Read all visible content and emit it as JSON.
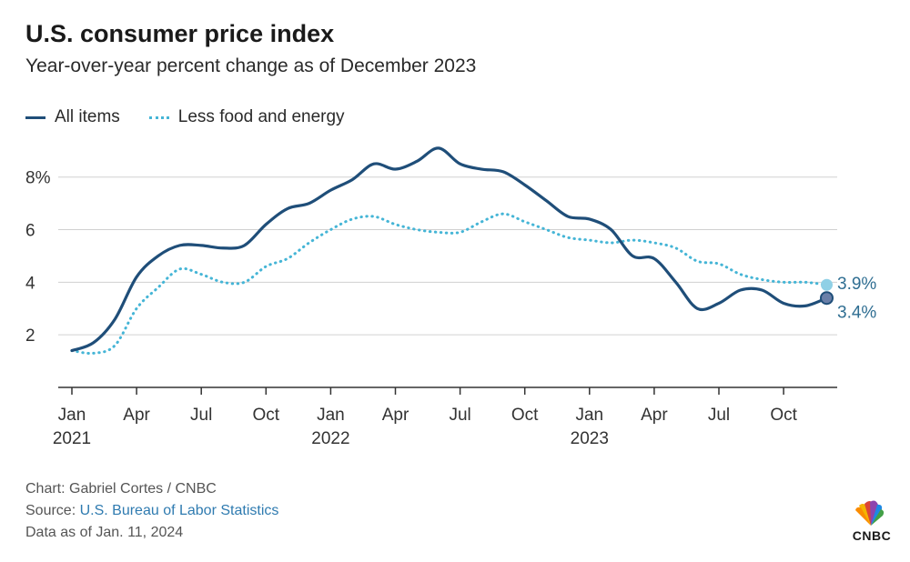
{
  "title": "U.S. consumer price index",
  "subtitle": "Year-over-year percent change as of December 2023",
  "legend": [
    {
      "label": "All items",
      "color": "#1f4e79",
      "style": "solid"
    },
    {
      "label": "Less food and energy",
      "color": "#45b5d6",
      "style": "dotted"
    }
  ],
  "footer": {
    "credit": "Chart: Gabriel Cortes / CNBC",
    "source_prefix": "Source: ",
    "source_link": "U.S. Bureau of Labor Statistics",
    "data_date": "Data as of Jan. 11, 2024"
  },
  "logo": {
    "text": "CNBC",
    "icon": "cnbc-peacock-icon"
  },
  "chart_data": {
    "type": "line",
    "x": [
      "2021-01",
      "2021-02",
      "2021-03",
      "2021-04",
      "2021-05",
      "2021-06",
      "2021-07",
      "2021-08",
      "2021-09",
      "2021-10",
      "2021-11",
      "2021-12",
      "2022-01",
      "2022-02",
      "2022-03",
      "2022-04",
      "2022-05",
      "2022-06",
      "2022-07",
      "2022-08",
      "2022-09",
      "2022-10",
      "2022-11",
      "2022-12",
      "2023-01",
      "2023-02",
      "2023-03",
      "2023-04",
      "2023-05",
      "2023-06",
      "2023-07",
      "2023-08",
      "2023-09",
      "2023-10",
      "2023-11",
      "2023-12"
    ],
    "x_ticks": [
      {
        "label": "Jan",
        "year": "2021",
        "index": 0
      },
      {
        "label": "Apr",
        "index": 3
      },
      {
        "label": "Jul",
        "index": 6
      },
      {
        "label": "Oct",
        "index": 9
      },
      {
        "label": "Jan",
        "year": "2022",
        "index": 12
      },
      {
        "label": "Apr",
        "index": 15
      },
      {
        "label": "Jul",
        "index": 18
      },
      {
        "label": "Oct",
        "index": 21
      },
      {
        "label": "Jan",
        "year": "2023",
        "index": 24
      },
      {
        "label": "Apr",
        "index": 27
      },
      {
        "label": "Jul",
        "index": 30
      },
      {
        "label": "Oct",
        "index": 33
      }
    ],
    "y_ticks": [
      {
        "value": 2,
        "label": "2"
      },
      {
        "value": 4,
        "label": "4"
      },
      {
        "value": 6,
        "label": "6"
      },
      {
        "value": 8,
        "label": "8%"
      }
    ],
    "ylim": [
      0,
      9.2
    ],
    "grid": true,
    "legend_position": "top-left",
    "series": [
      {
        "name": "All items",
        "color": "#1f4e79",
        "style": "solid",
        "values": [
          1.4,
          1.7,
          2.6,
          4.2,
          5.0,
          5.4,
          5.4,
          5.3,
          5.4,
          6.2,
          6.8,
          7.0,
          7.5,
          7.9,
          8.5,
          8.3,
          8.6,
          9.1,
          8.5,
          8.3,
          8.2,
          7.7,
          7.1,
          6.5,
          6.4,
          6.0,
          5.0,
          4.9,
          4.0,
          3.0,
          3.2,
          3.7,
          3.7,
          3.2,
          3.1,
          3.4
        ],
        "end_label": "3.4%"
      },
      {
        "name": "Less food and energy",
        "color": "#45b5d6",
        "style": "dotted",
        "values": [
          1.4,
          1.3,
          1.6,
          3.0,
          3.8,
          4.5,
          4.3,
          4.0,
          4.0,
          4.6,
          4.9,
          5.5,
          6.0,
          6.4,
          6.5,
          6.2,
          6.0,
          5.9,
          5.9,
          6.3,
          6.6,
          6.3,
          6.0,
          5.7,
          5.6,
          5.5,
          5.6,
          5.5,
          5.3,
          4.8,
          4.7,
          4.3,
          4.1,
          4.0,
          4.0,
          3.9
        ],
        "end_label": "3.9%"
      }
    ]
  }
}
